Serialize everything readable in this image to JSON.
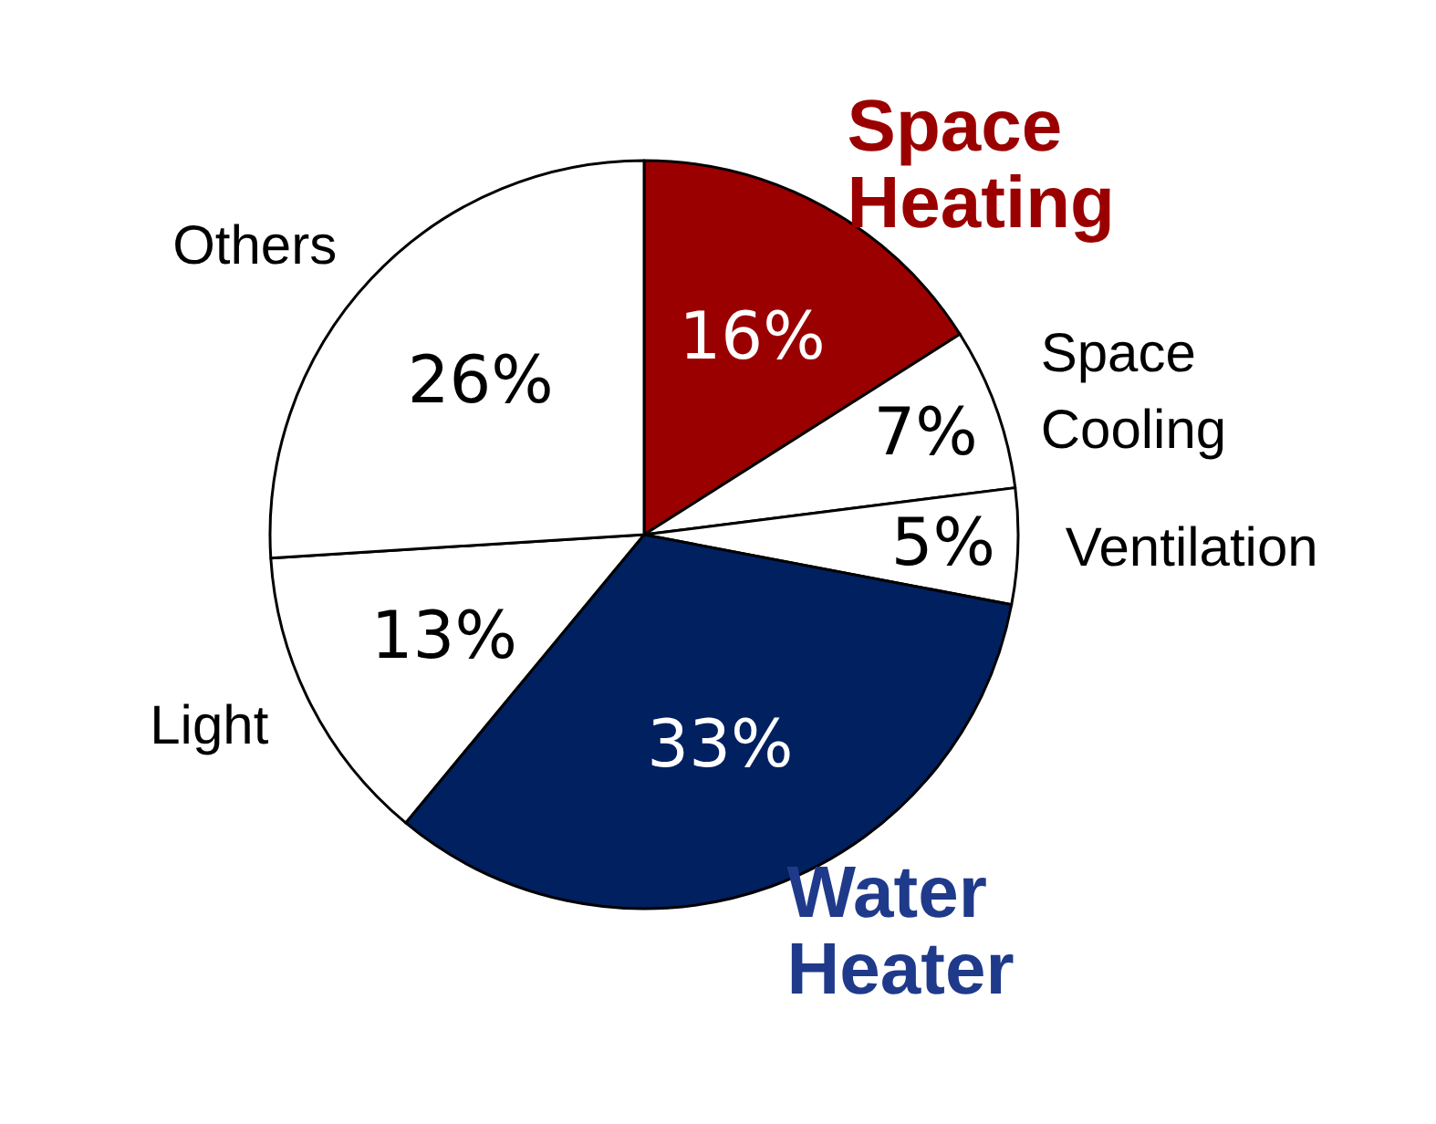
{
  "chart_data": {
    "type": "pie",
    "categories": [
      "Space Heating",
      "Space Cooling",
      "Ventilation",
      "Water Heater",
      "Light",
      "Others"
    ],
    "values": [
      16,
      7,
      5,
      33,
      13,
      26
    ],
    "colors": [
      "#9b0000",
      "#ffffff",
      "#ffffff",
      "#002060",
      "#ffffff",
      "#ffffff"
    ],
    "value_labels": [
      "16%",
      "7%",
      "5%",
      "33%",
      "13%",
      "26%"
    ],
    "legend": false
  }
}
